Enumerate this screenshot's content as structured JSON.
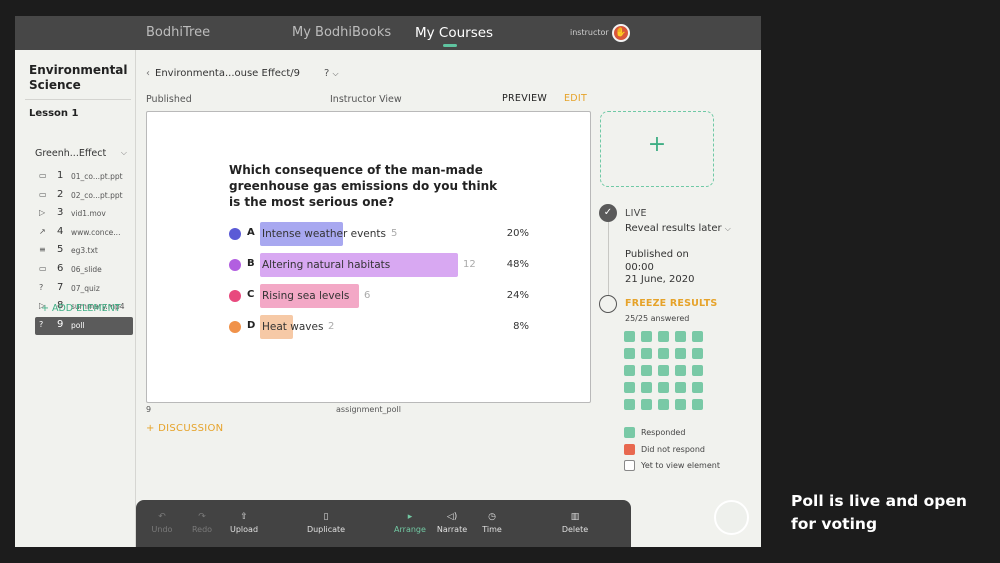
{
  "nav": {
    "brand": "BodhiTree",
    "books": "My BodhiBooks",
    "courses": "My Courses",
    "role": "instructor",
    "avatar_icon": "hand-icon"
  },
  "sidebar": {
    "course_title": "Environmental Science",
    "lesson": "Lesson 1",
    "section": "Greenh...Effect",
    "elements": [
      {
        "icon": "slides-icon",
        "glyph": "▭",
        "num": "1",
        "name": "01_co...pt.ppt"
      },
      {
        "icon": "slides-icon",
        "glyph": "▭",
        "num": "2",
        "name": "02_co...pt.ppt"
      },
      {
        "icon": "video-icon",
        "glyph": "▷",
        "num": "3",
        "name": "vid1.mov"
      },
      {
        "icon": "link-icon",
        "glyph": "↗",
        "num": "4",
        "name": "www.conce..."
      },
      {
        "icon": "text-icon",
        "glyph": "≡",
        "num": "5",
        "name": "eg3.txt"
      },
      {
        "icon": "slides-icon",
        "glyph": "▭",
        "num": "6",
        "name": "06_slide"
      },
      {
        "icon": "quiz-icon",
        "glyph": "?",
        "num": "7",
        "name": "07_quiz"
      },
      {
        "icon": "video-icon",
        "glyph": "▷",
        "num": "8",
        "name": "summary.mp4"
      },
      {
        "icon": "poll-icon",
        "glyph": "?",
        "num": "9",
        "name": "poll",
        "active": true
      }
    ],
    "add_element": "+ ADD ELEMENT"
  },
  "header": {
    "breadcrumb": "Environmenta...ouse Effect/9",
    "menu": "?",
    "status": "Published",
    "view": "Instructor View",
    "preview": "PREVIEW",
    "edit": "EDIT"
  },
  "poll": {
    "question": "Which consequence of the man-made greenhouse gas emissions do you think is the most serious one?",
    "options": [
      {
        "letter": "A",
        "text": "Intense weather events",
        "count": "5",
        "percent": "20%",
        "value": 20,
        "dot": "#5b5bd6",
        "bar": "#a8a8f0"
      },
      {
        "letter": "B",
        "text": "Altering natural habitats",
        "count": "12",
        "percent": "48%",
        "value": 48,
        "dot": "#b25fe0",
        "bar": "#d8a8f2"
      },
      {
        "letter": "C",
        "text": "Rising sea levels",
        "count": "6",
        "percent": "24%",
        "value": 24,
        "dot": "#e8497e",
        "bar": "#f3a8c6"
      },
      {
        "letter": "D",
        "text": "Heat waves",
        "count": "2",
        "percent": "8%",
        "value": 8,
        "dot": "#f0924a",
        "bar": "#f6c9a6"
      }
    ],
    "slide_number": "9",
    "slide_name": "assignment_poll"
  },
  "discussion": "+ DISCUSSION",
  "panel": {
    "add": "+",
    "live": "LIVE",
    "reveal": "Reveal results later",
    "published_on": "Published on",
    "time": "00:00",
    "date": "21 June, 2020",
    "freeze": "FREEZE RESULTS",
    "answered": "25/25 answered",
    "respondents": 25,
    "legend": [
      {
        "label": "Responded",
        "color": "#79c9a6"
      },
      {
        "label": "Did not respond",
        "color": "#e8684f"
      },
      {
        "label": "Yet to view element",
        "color": "#ffffff"
      }
    ]
  },
  "toolbar": [
    {
      "name": "undo",
      "label": "Undo",
      "glyph": "↶",
      "state": "disabled"
    },
    {
      "name": "redo",
      "label": "Redo",
      "glyph": "↷",
      "state": "disabled"
    },
    {
      "name": "upload",
      "label": "Upload",
      "glyph": "⇧",
      "state": "normal"
    },
    {
      "name": "duplicate",
      "label": "Duplicate",
      "glyph": "▯",
      "state": "normal"
    },
    {
      "name": "arrange",
      "label": "Arrange",
      "glyph": "▸",
      "state": "active"
    },
    {
      "name": "narrate",
      "label": "Narrate",
      "glyph": "◁)",
      "state": "normal"
    },
    {
      "name": "time",
      "label": "Time",
      "glyph": "◷",
      "state": "normal"
    },
    {
      "name": "delete",
      "label": "Delete",
      "glyph": "▥",
      "state": "normal"
    }
  ],
  "caption": "Poll is live and open for voting"
}
